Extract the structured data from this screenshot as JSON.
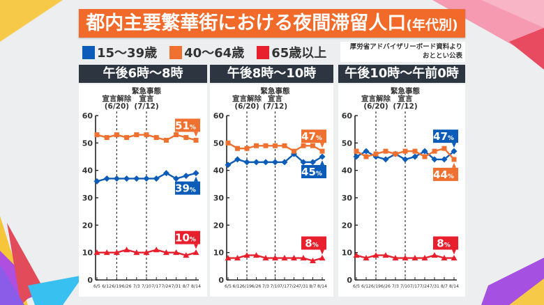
{
  "title": {
    "main": "都内主要繁華街における夜間滞留人口",
    "suffix": "(年代別)"
  },
  "legend": [
    {
      "label": "15〜39歳",
      "color": "#0b5cb8"
    },
    {
      "label": "40〜64歳",
      "color": "#f07030"
    },
    {
      "label": "65歳以上",
      "color": "#e8202e"
    }
  ],
  "source": {
    "line1": "厚労省アドバイザリーボード資料より",
    "line2": "おととい公表"
  },
  "annotations": [
    {
      "label_lines": [
        "宣言解除",
        "(6/20)"
      ],
      "x_index": 2
    },
    {
      "label_lines": [
        "緊急事態",
        "宣言",
        "(7/12)"
      ],
      "x_index": 5
    }
  ],
  "chart_data": [
    {
      "type": "line",
      "title": "午後6時〜8時",
      "x": [
        "6/5",
        "6/12",
        "6/19",
        "6/26",
        "7/3",
        "7/10",
        "7/17",
        "7/24",
        "7/31",
        "8/7",
        "8/14"
      ],
      "yticks": [
        0,
        10,
        20,
        30,
        40,
        50,
        60
      ],
      "ylim": [
        0,
        60
      ],
      "grid": false,
      "series": [
        {
          "name": "15〜39歳",
          "color": "#0b5cb8",
          "marker": "diamond",
          "values": [
            36,
            37,
            37,
            37,
            37,
            37,
            37,
            39,
            37,
            38,
            39
          ],
          "end_label": "39%",
          "label_pos": "below"
        },
        {
          "name": "40〜64歳",
          "color": "#f07030",
          "marker": "square",
          "values": [
            53,
            52,
            53,
            52,
            53,
            53,
            52,
            51,
            53,
            52,
            51
          ],
          "end_label": "51%",
          "label_pos": "above"
        },
        {
          "name": "65歳以上",
          "color": "#e8202e",
          "marker": "triangle",
          "values": [
            10,
            10,
            10,
            11,
            10,
            10,
            11,
            10,
            10,
            9,
            10
          ],
          "end_label": "10%",
          "label_pos": "above"
        }
      ]
    },
    {
      "type": "line",
      "title": "午後8時〜10時",
      "x": [
        "6/5",
        "6/12",
        "6/19",
        "6/26",
        "7/3",
        "7/10",
        "7/17",
        "7/24",
        "7/31",
        "8/7",
        "8/14"
      ],
      "yticks": [
        0,
        10,
        20,
        30,
        40,
        50,
        60
      ],
      "ylim": [
        0,
        60
      ],
      "grid": false,
      "series": [
        {
          "name": "15〜39歳",
          "color": "#0b5cb8",
          "marker": "diamond",
          "values": [
            42,
            44,
            43,
            43,
            43,
            43,
            43,
            46,
            43,
            43,
            45
          ],
          "end_label": "45%",
          "label_pos": "below"
        },
        {
          "name": "40〜64歳",
          "color": "#f07030",
          "marker": "square",
          "values": [
            50,
            48,
            48,
            49,
            49,
            49,
            49,
            47,
            49,
            49,
            47
          ],
          "end_label": "47%",
          "label_pos": "above"
        },
        {
          "name": "65歳以上",
          "color": "#e8202e",
          "marker": "triangle",
          "values": [
            8,
            8,
            9,
            9,
            8,
            8,
            8,
            8,
            8,
            7,
            8
          ],
          "end_label": "8%",
          "label_pos": "above"
        }
      ]
    },
    {
      "type": "line",
      "title": "午後10時〜午前0時",
      "x": [
        "6/5",
        "6/12",
        "6/19",
        "6/26",
        "7/3",
        "7/10",
        "7/17",
        "7/24",
        "7/31",
        "8/7",
        "8/14"
      ],
      "yticks": [
        0,
        10,
        20,
        30,
        40,
        50,
        60
      ],
      "ylim": [
        0,
        60
      ],
      "grid": false,
      "series": [
        {
          "name": "15〜39歳",
          "color": "#0b5cb8",
          "marker": "diamond",
          "values": [
            45,
            47,
            45,
            44,
            46,
            44,
            45,
            47,
            44,
            44,
            47
          ],
          "end_label": "47%",
          "label_pos": "above"
        },
        {
          "name": "40〜64歳",
          "color": "#f07030",
          "marker": "square",
          "values": [
            47,
            45,
            46,
            47,
            46,
            47,
            47,
            45,
            47,
            48,
            44
          ],
          "end_label": "44%",
          "label_pos": "below"
        },
        {
          "name": "65歳以上",
          "color": "#e8202e",
          "marker": "triangle",
          "values": [
            9,
            8,
            9,
            9,
            8,
            8,
            8,
            8,
            9,
            8,
            8
          ],
          "end_label": "8%",
          "label_pos": "above"
        }
      ]
    }
  ]
}
